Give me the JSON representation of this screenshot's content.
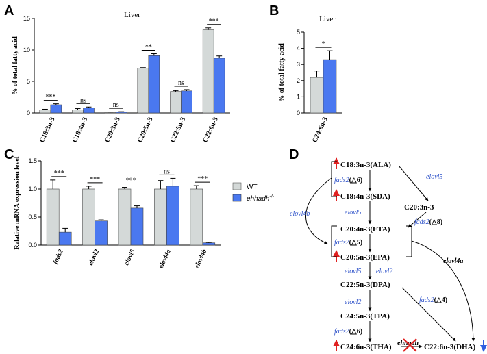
{
  "panels": {
    "A": "A",
    "B": "B",
    "C": "C",
    "D": "D"
  },
  "colors": {
    "wt": "#d4d9d8",
    "ko": "#4a78f0",
    "enzyme": "#2e52c9",
    "up_arrow": "#e02020",
    "down_arrow": "#2f5fe0",
    "cross": "#e02020"
  },
  "legend": {
    "wt": "WT",
    "ko": "ehhadh",
    "ko_sup": "-/-"
  },
  "chart_data": [
    {
      "id": "A",
      "type": "bar",
      "title": "Liver",
      "ylabel": "% of total fatty acid",
      "ylim": [
        0,
        15
      ],
      "yticks": [
        0,
        5,
        10,
        15
      ],
      "categories": [
        "C18:3n-3",
        "C18:4n-3",
        "C20:3n-3",
        "C20:5n-3",
        "C22:5n-3",
        "C22:6n-3"
      ],
      "series": [
        {
          "name": "WT",
          "values": [
            0.5,
            0.5,
            0.1,
            7.1,
            3.4,
            13.2
          ],
          "errors": [
            0.1,
            0.2,
            0.05,
            0.1,
            0.15,
            0.3
          ]
        },
        {
          "name": "ehhadh-/-",
          "values": [
            1.3,
            0.8,
            0.15,
            9.1,
            3.5,
            8.7
          ],
          "errors": [
            0.15,
            0.15,
            0.05,
            0.3,
            0.2,
            0.35
          ]
        }
      ],
      "significance": [
        "***",
        "ns",
        "ns",
        "**",
        "ns",
        "***"
      ]
    },
    {
      "id": "B",
      "type": "bar",
      "title": "Liver",
      "ylabel": "% of total fatty acid",
      "ylim": [
        0,
        5
      ],
      "yticks": [
        0,
        1,
        2,
        3,
        4,
        5
      ],
      "categories": [
        "C24:6n-3"
      ],
      "series": [
        {
          "name": "WT",
          "values": [
            2.2
          ],
          "errors": [
            0.4
          ]
        },
        {
          "name": "ehhadh-/-",
          "values": [
            3.3
          ],
          "errors": [
            0.55
          ]
        }
      ],
      "significance": [
        "*"
      ]
    },
    {
      "id": "C",
      "type": "bar",
      "title": "",
      "ylabel": "Relative mRNA expression level",
      "ylim": [
        0,
        1.5
      ],
      "yticks": [
        "0.0",
        "0.5",
        "1.0",
        "1.5"
      ],
      "categories": [
        "fads2",
        "elovl2",
        "elovl5",
        "elovl4a",
        "elovl4b"
      ],
      "series": [
        {
          "name": "WT",
          "values": [
            1.0,
            1.0,
            1.0,
            1.0,
            1.0
          ],
          "errors": [
            0.16,
            0.05,
            0.03,
            0.15,
            0.06
          ]
        },
        {
          "name": "ehhadh-/-",
          "values": [
            0.23,
            0.43,
            0.66,
            1.05,
            0.04
          ],
          "errors": [
            0.07,
            0.02,
            0.04,
            0.14,
            0.01
          ]
        }
      ],
      "significance": [
        "***",
        "***",
        "***",
        "ns",
        "***"
      ]
    }
  ],
  "pathway": {
    "nodes": {
      "ala": "C18:3n-3(ALA)",
      "sda": "C18:4n-3(SDA)",
      "c203": "C20:3n-3",
      "eta": "C20:4n-3(ETA)",
      "epa": "C20:5n-3(EPA)",
      "dpa": "C22:5n-3(DPA)",
      "tpa": "C24:5n-3(TPA)",
      "tha": "C24:6n-3(THA)",
      "dha": "C22:6n-3(DHA)"
    },
    "enzymes": {
      "fads2": "fads2",
      "delta6": "(△6)",
      "delta5": "(△5)",
      "delta8": "(△8)",
      "delta4": "(△4)",
      "elovl5": "elovl5",
      "elovl2": "elovl2",
      "elovl4b": "elovl4b",
      "elovl4a": "elovl4a",
      "ehhadh": "ehhadh"
    }
  }
}
